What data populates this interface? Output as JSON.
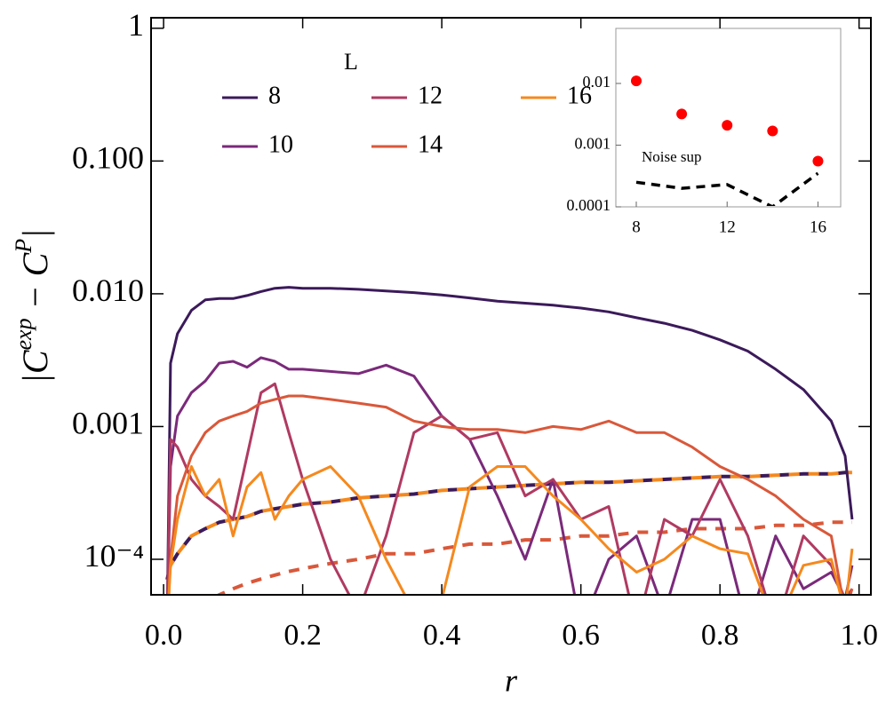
{
  "chart_data": [
    {
      "type": "line",
      "xlabel": "r",
      "ylabel_parts": [
        {
          "text": "|C"
        },
        {
          "text": "exp",
          "sup": true
        },
        {
          "text": " − C"
        },
        {
          "text": "P",
          "sup": true
        },
        {
          "text": "|"
        }
      ],
      "legend_title": "L",
      "log_y": true,
      "xlim": [
        -0.018,
        1.017
      ],
      "ylim": [
        5.4e-05,
        1.2
      ],
      "xticks": [
        {
          "value": 0,
          "label": "0.0"
        },
        0.2,
        0.4,
        0.6,
        0.8,
        {
          "value": 1,
          "label": "1.0"
        }
      ],
      "yticks": [
        1,
        {
          "value": 0.1,
          "label": "0.100"
        },
        {
          "value": 0.01,
          "label": "0.010"
        },
        {
          "value": 0.001,
          "label": "0.001"
        },
        {
          "value": 0.0001,
          "label": "10⁻⁴"
        }
      ],
      "x": [
        0.005,
        0.01,
        0.02,
        0.04,
        0.06,
        0.08,
        0.1,
        0.12,
        0.14,
        0.16,
        0.18,
        0.2,
        0.24,
        0.28,
        0.32,
        0.36,
        0.4,
        0.44,
        0.48,
        0.52,
        0.56,
        0.6,
        0.64,
        0.68,
        0.72,
        0.76,
        0.8,
        0.84,
        0.88,
        0.92,
        0.96,
        0.98,
        0.99
      ],
      "series": [
        {
          "name": "8",
          "color": "#3b1a5a",
          "values": [
            3e-05,
            0.003,
            0.005,
            0.0075,
            0.009,
            0.0092,
            0.0092,
            0.0097,
            0.0104,
            0.011,
            0.0112,
            0.011,
            0.011,
            0.0108,
            0.0105,
            0.0102,
            0.0098,
            0.0093,
            0.0088,
            0.0085,
            0.0082,
            0.0078,
            0.0073,
            0.0066,
            0.006,
            0.0053,
            0.0045,
            0.0037,
            0.0027,
            0.0019,
            0.0011,
            0.0006,
            0.0002
          ]
        },
        {
          "name": "10",
          "color": "#7a2a7a",
          "values": [
            3e-05,
            0.0005,
            0.0012,
            0.0018,
            0.0022,
            0.003,
            0.0031,
            0.0028,
            0.0033,
            0.0031,
            0.0027,
            0.0027,
            0.0026,
            0.0025,
            0.0029,
            0.0024,
            0.0012,
            0.0008,
            0.0003,
            0.0001,
            0.0004,
            3e-05,
            0.0001,
            0.00015,
            4e-05,
            0.0002,
            0.0002,
            3e-05,
            0.00015,
            6e-05,
            8e-05,
            5e-05,
            9e-05
          ]
        },
        {
          "name": "12",
          "color": "#b03a62",
          "values": [
            3e-05,
            0.0008,
            0.0007,
            0.0004,
            0.0003,
            0.00025,
            0.0002,
            0.0006,
            0.0018,
            0.0021,
            0.0009,
            0.0004,
            0.0001,
            4e-05,
            0.00015,
            0.0009,
            0.0012,
            0.0008,
            0.0009,
            0.0003,
            0.0004,
            0.0002,
            0.00025,
            3e-05,
            0.0002,
            0.00015,
            0.0004,
            0.00015,
            3e-05,
            0.00015,
            9e-05,
            5e-05,
            6e-05
          ]
        },
        {
          "name": "14",
          "color": "#d9583a",
          "values": [
            3e-05,
            0.0001,
            0.0003,
            0.0006,
            0.0009,
            0.0011,
            0.0012,
            0.0013,
            0.0015,
            0.0016,
            0.0017,
            0.0017,
            0.0016,
            0.0015,
            0.0014,
            0.0011,
            0.001,
            0.00095,
            0.00095,
            0.0009,
            0.001,
            0.00095,
            0.0011,
            0.0009,
            0.0009,
            0.0007,
            0.0005,
            0.0004,
            0.0003,
            0.0002,
            0.00015,
            4e-05,
            6e-05
          ]
        },
        {
          "name": "16",
          "color": "#f5891e",
          "values": [
            3e-05,
            9e-05,
            0.0002,
            0.0005,
            0.0003,
            0.0004,
            0.00015,
            0.00035,
            0.00045,
            0.0002,
            0.0003,
            0.0004,
            0.0005,
            0.0003,
            0.0001,
            4e-05,
            5e-05,
            0.00035,
            0.0005,
            0.0005,
            0.0003,
            0.0002,
            0.00012,
            8e-05,
            0.0001,
            0.00015,
            0.00012,
            0.00011,
            3e-05,
            9e-05,
            0.0001,
            4e-05,
            0.00012
          ]
        }
      ],
      "reference_curves": [
        {
          "colors": [
            "#3b1a5a",
            "#f5891e"
          ],
          "values": [
            7e-05,
            9e-05,
            0.00011,
            0.00015,
            0.00017,
            0.00019,
            0.0002,
            0.00021,
            0.00023,
            0.00024,
            0.00025,
            0.00026,
            0.00027,
            0.00029,
            0.0003,
            0.00031,
            0.00033,
            0.00034,
            0.00035,
            0.00036,
            0.00037,
            0.00038,
            0.00038,
            0.00039,
            0.0004,
            0.00041,
            0.00042,
            0.00042,
            0.00043,
            0.00044,
            0.00044,
            0.00045,
            0.00045
          ]
        },
        {
          "colors": [
            "#d9583a"
          ],
          "values": [
            1.3e-05,
            1.9e-05,
            2.7e-05,
            3.8e-05,
            4.7e-05,
            5.4e-05,
            6e-05,
            6.6e-05,
            7.1e-05,
            7.6e-05,
            8.1e-05,
            8.5e-05,
            9.3e-05,
            0.0001,
            0.00011,
            0.00011,
            0.00012,
            0.00013,
            0.00013,
            0.00014,
            0.00014,
            0.00015,
            0.00015,
            0.00016,
            0.00016,
            0.00017,
            0.00017,
            0.00017,
            0.00018,
            0.00018,
            0.00019,
            0.00019,
            0.00019
          ]
        }
      ]
    },
    {
      "type": "scatter",
      "log_y": true,
      "xlim": [
        7.1,
        17.0
      ],
      "ylim": [
        0.0001,
        0.078
      ],
      "xticks": [
        8,
        12,
        16
      ],
      "yticks": [
        0.01,
        0.001,
        0.0001
      ],
      "x": [
        8,
        10,
        12,
        14,
        16
      ],
      "series": [
        {
          "color": "#ff0000",
          "values": [
            0.011,
            0.0032,
            0.0021,
            0.0017,
            0.00055
          ]
        },
        {
          "name": "Noise sup",
          "color": "#000000",
          "dashed": true,
          "values": [
            0.00025,
            0.0002,
            0.00023,
            0.0001,
            0.00035
          ]
        }
      ]
    }
  ]
}
